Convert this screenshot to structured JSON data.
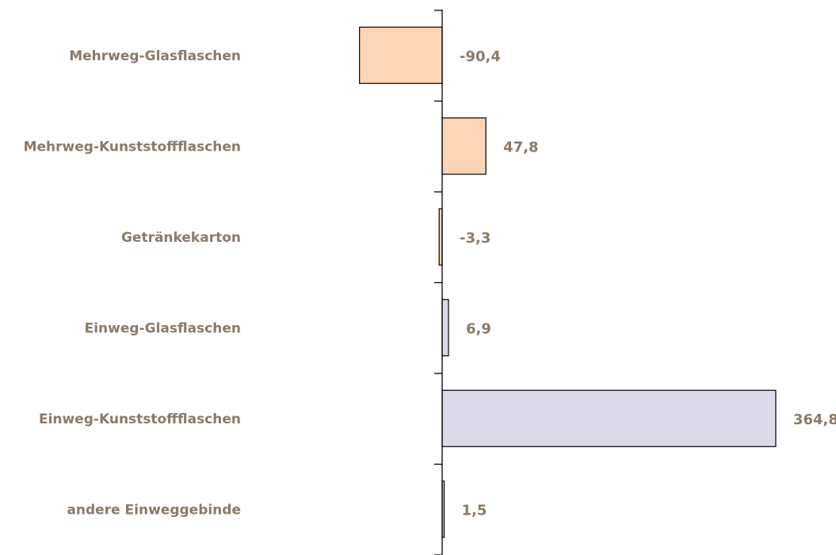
{
  "chart_data": {
    "type": "bar",
    "orientation": "horizontal",
    "categories": [
      "Mehrweg-Glasflaschen",
      "Mehrweg-Kunststoffflaschen",
      "Getränkekarton",
      "Einweg-Glasflaschen",
      "Einweg-Kunststoffflaschen",
      "andere Einweggebinde"
    ],
    "values": [
      -90.4,
      47.8,
      -3.3,
      6.9,
      364.8,
      1.5
    ],
    "value_labels": [
      "-90,4",
      "47,8",
      "-3,3",
      "6,9",
      "364,8",
      "1,5"
    ],
    "colors": {
      "mehrweg": "#fbd5b5",
      "einweg": "#dcdae8",
      "bar_outline": "#000000",
      "label_text": "#8a7a68"
    },
    "bar_color_groups": [
      "mehrweg",
      "mehrweg",
      "mehrweg",
      "einweg",
      "einweg",
      "einweg"
    ],
    "grid": false,
    "legend": false
  }
}
